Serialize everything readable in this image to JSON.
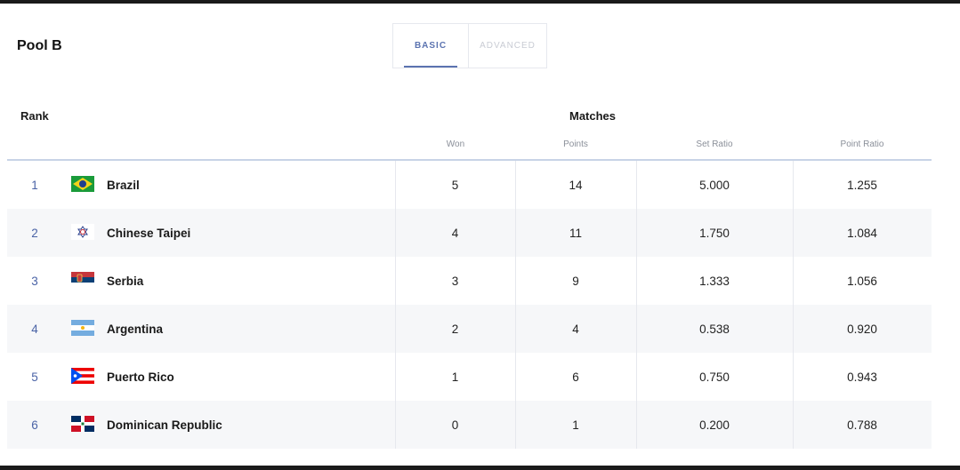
{
  "pool_title": "Pool B",
  "tabs": {
    "basic": "BASIC",
    "advanced": "ADVANCED"
  },
  "headers": {
    "rank": "Rank",
    "matches": "Matches",
    "won": "Won",
    "points": "Points",
    "set_ratio": "Set Ratio",
    "point_ratio": "Point Ratio"
  },
  "rows": [
    {
      "rank": "1",
      "team": "Brazil",
      "flag_icon": "brazil-flag-icon",
      "won": "5",
      "points": "14",
      "set_ratio": "5.000",
      "point_ratio": "1.255"
    },
    {
      "rank": "2",
      "team": "Chinese Taipei",
      "flag_icon": "chinese-taipei-flag-icon",
      "won": "4",
      "points": "11",
      "set_ratio": "1.750",
      "point_ratio": "1.084"
    },
    {
      "rank": "3",
      "team": "Serbia",
      "flag_icon": "serbia-flag-icon",
      "won": "3",
      "points": "9",
      "set_ratio": "1.333",
      "point_ratio": "1.056"
    },
    {
      "rank": "4",
      "team": "Argentina",
      "flag_icon": "argentina-flag-icon",
      "won": "2",
      "points": "4",
      "set_ratio": "0.538",
      "point_ratio": "0.920"
    },
    {
      "rank": "5",
      "team": "Puerto Rico",
      "flag_icon": "puerto-rico-flag-icon",
      "won": "1",
      "points": "6",
      "set_ratio": "0.750",
      "point_ratio": "0.943"
    },
    {
      "rank": "6",
      "team": "Dominican Republic",
      "flag_icon": "dominican-republic-flag-icon",
      "won": "0",
      "points": "1",
      "set_ratio": "0.200",
      "point_ratio": "0.788"
    }
  ],
  "colors": {
    "accent": "#5b73b0",
    "rank_text": "#4a63a6",
    "row_alt": "#f6f7f9",
    "header_line": "#c8d3e6"
  }
}
